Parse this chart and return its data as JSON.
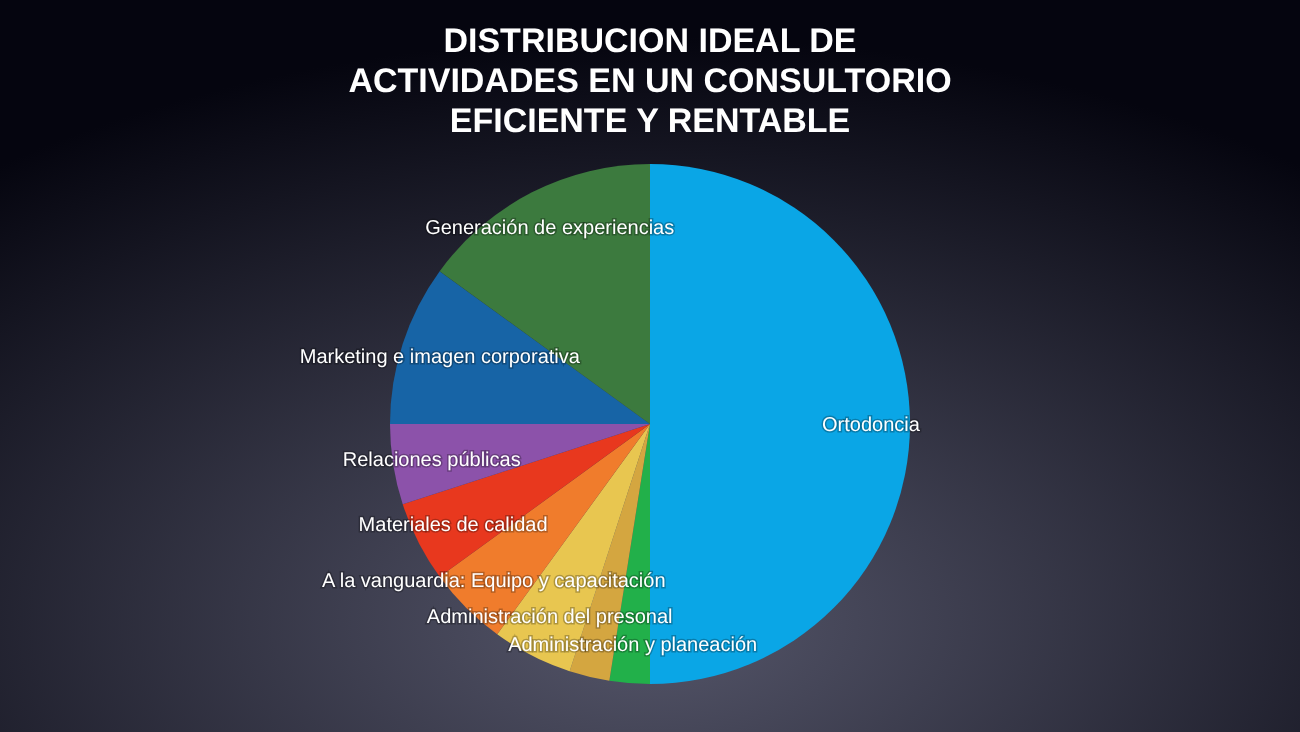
{
  "chart_data": {
    "type": "pie",
    "title": "DISTRIBUCION IDEAL DE ACTIVIDADES EN UN CONSULTORIO EFICIENTE Y RENTABLE",
    "categories": [
      "Ortodoncia",
      "Administración y planeación",
      null,
      "Administración del presonal",
      "A la vanguardia: Equipo y capacitación",
      "Materiales de calidad",
      "Relaciones públicas",
      "Marketing e imagen corporativa",
      "Generación de experiencias"
    ],
    "values": [
      50,
      2.5,
      2.5,
      5,
      5,
      5,
      5,
      10,
      15
    ],
    "colors": [
      "#0aa6e6",
      "#22b04a",
      "#d4a640",
      "#e8c650",
      "#f07c2c",
      "#e8381e",
      "#8c52aa",
      "#1764a6",
      "#3c7a3e"
    ]
  }
}
